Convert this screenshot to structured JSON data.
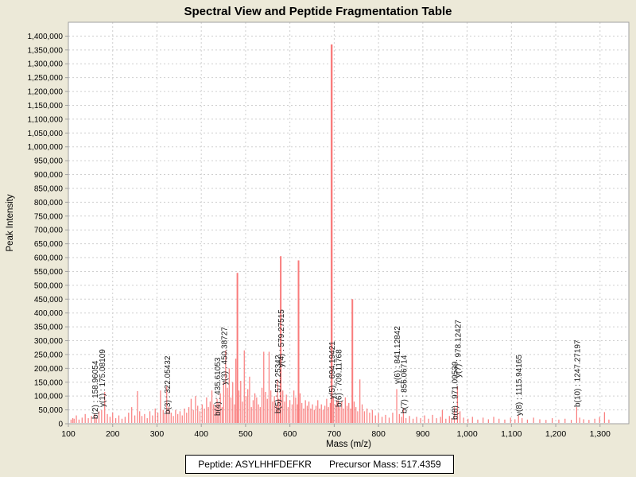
{
  "title": "Spectral View and Peptide Fragmentation Table",
  "footer": {
    "peptide": "Peptide: ASYLHHFDEFKR",
    "precursor_mass": "Precursor Mass: 517.4359"
  },
  "colors": {
    "background": "#ECE9D8",
    "plot_background": "#FFFFFF",
    "peak": "#F97C7C",
    "grid": "#CFCFCF",
    "frame": "#A0A0A0",
    "text": "#000000",
    "annotation_text": "#1A1A1A"
  },
  "chart_data": {
    "type": "bar",
    "title": "Spectral View and Peptide Fragmentation Table",
    "xlabel": "Mass (m/z)",
    "ylabel": "Peak Intensity",
    "xlim": [
      100,
      1365
    ],
    "ylim": [
      0,
      1450000
    ],
    "x_tick_min": 100,
    "x_tick_max": 1300,
    "x_tick_step": 100,
    "y_tick_min": 0,
    "y_tick_max": 1400000,
    "y_tick_step": 50000,
    "grid": true,
    "legend": "none",
    "annotations": [
      {
        "label": "b(2) : 158.96054",
        "mz": 158.96054,
        "bottom": 527
      },
      {
        "label": "y(1) : 175.08109",
        "mz": 175.08109,
        "bottom": 512
      },
      {
        "label": "b(3) : 322.05432",
        "mz": 322.05432,
        "bottom": 521
      },
      {
        "label": "b(4) : 435.61053",
        "mz": 435.61053,
        "bottom": 523
      },
      {
        "label": "y(3) : 450.38727",
        "mz": 450.38727,
        "bottom": 484
      },
      {
        "label": "b(5) : 572.25342",
        "mz": 572.25342,
        "bottom": 520
      },
      {
        "label": "y(4) : 579.27515",
        "mz": 579.27515,
        "bottom": 462
      },
      {
        "label": "y(5) : 694.19421",
        "mz": 694.19421,
        "bottom": 502
      },
      {
        "label": "b(6) : 709.11768",
        "mz": 709.11768,
        "bottom": 512
      },
      {
        "label": "y(6) : 841.12842",
        "mz": 841.12842,
        "bottom": 483
      },
      {
        "label": "b(7) : 856.06714",
        "mz": 856.06714,
        "bottom": 520
      },
      {
        "label": "b(8) : 971.09539",
        "mz": 971.09539,
        "bottom": 528
      },
      {
        "label": "y(7) : 978.12427",
        "mz": 978.12427,
        "bottom": 475
      },
      {
        "label": "y(8) : 1115.94165",
        "mz": 1115.94165,
        "bottom": 523
      },
      {
        "label": "b(10) : 1247.27197",
        "mz": 1247.27197,
        "bottom": 512
      }
    ],
    "peaks": [
      [
        106,
        15000
      ],
      [
        110,
        20000
      ],
      [
        113,
        18000
      ],
      [
        118,
        30000
      ],
      [
        124,
        15000
      ],
      [
        131,
        22000
      ],
      [
        138,
        35000
      ],
      [
        145,
        20000
      ],
      [
        152,
        28000
      ],
      [
        158.96,
        35000
      ],
      [
        163,
        20000
      ],
      [
        169,
        45000
      ],
      [
        175.08,
        50000
      ],
      [
        182,
        115000
      ],
      [
        188,
        35000
      ],
      [
        194,
        25000
      ],
      [
        200,
        40000
      ],
      [
        207,
        20000
      ],
      [
        214,
        30000
      ],
      [
        221,
        18000
      ],
      [
        228,
        25000
      ],
      [
        236,
        40000
      ],
      [
        243,
        60000
      ],
      [
        250,
        30000
      ],
      [
        256,
        118000
      ],
      [
        261,
        45000
      ],
      [
        266,
        28000
      ],
      [
        272,
        35000
      ],
      [
        278,
        20000
      ],
      [
        284,
        45000
      ],
      [
        290,
        30000
      ],
      [
        296,
        55000
      ],
      [
        302,
        40000
      ],
      [
        308,
        120000
      ],
      [
        314,
        50000
      ],
      [
        318,
        35000
      ],
      [
        322.05,
        135000
      ],
      [
        327,
        60000
      ],
      [
        332,
        40000
      ],
      [
        337,
        28000
      ],
      [
        342,
        50000
      ],
      [
        347,
        35000
      ],
      [
        352,
        45000
      ],
      [
        357,
        30000
      ],
      [
        362,
        55000
      ],
      [
        367,
        40000
      ],
      [
        372,
        60000
      ],
      [
        377,
        90000
      ],
      [
        382,
        50000
      ],
      [
        387,
        100000
      ],
      [
        392,
        65000
      ],
      [
        397,
        45000
      ],
      [
        402,
        70000
      ],
      [
        407,
        55000
      ],
      [
        412,
        95000
      ],
      [
        416,
        60000
      ],
      [
        420,
        80000
      ],
      [
        424,
        120000
      ],
      [
        428,
        70000
      ],
      [
        432,
        60000
      ],
      [
        435.61,
        90000
      ],
      [
        439,
        75000
      ],
      [
        443,
        110000
      ],
      [
        447,
        60000
      ],
      [
        450.39,
        150000
      ],
      [
        455,
        265000
      ],
      [
        459,
        130000
      ],
      [
        463,
        200000
      ],
      [
        467,
        95000
      ],
      [
        471,
        150000
      ],
      [
        475,
        70000
      ],
      [
        478,
        235000
      ],
      [
        481.5,
        545000
      ],
      [
        485,
        120000
      ],
      [
        489,
        155000
      ],
      [
        493,
        80000
      ],
      [
        497,
        265000
      ],
      [
        501,
        100000
      ],
      [
        505,
        125000
      ],
      [
        509,
        170000
      ],
      [
        513,
        60000
      ],
      [
        517,
        85000
      ],
      [
        521,
        110000
      ],
      [
        525,
        95000
      ],
      [
        529,
        70000
      ],
      [
        533,
        60000
      ],
      [
        537,
        130000
      ],
      [
        541,
        260000
      ],
      [
        545,
        115000
      ],
      [
        549,
        90000
      ],
      [
        553,
        260000
      ],
      [
        557,
        120000
      ],
      [
        561,
        80000
      ],
      [
        565,
        100000
      ],
      [
        569,
        65000
      ],
      [
        572.25,
        160000
      ],
      [
        575,
        90000
      ],
      [
        579.28,
        605000
      ],
      [
        584,
        120000
      ],
      [
        588,
        80000
      ],
      [
        592,
        105000
      ],
      [
        596,
        60000
      ],
      [
        600,
        85000
      ],
      [
        605,
        70000
      ],
      [
        609,
        120000
      ],
      [
        613,
        95000
      ],
      [
        617,
        70000
      ],
      [
        619.5,
        590000
      ],
      [
        623,
        110000
      ],
      [
        627,
        75000
      ],
      [
        631,
        55000
      ],
      [
        635,
        85000
      ],
      [
        639,
        65000
      ],
      [
        643,
        80000
      ],
      [
        647,
        55000
      ],
      [
        651,
        70000
      ],
      [
        655,
        50000
      ],
      [
        659,
        65000
      ],
      [
        663,
        85000
      ],
      [
        667,
        55000
      ],
      [
        671,
        70000
      ],
      [
        675,
        50000
      ],
      [
        679,
        65000
      ],
      [
        683,
        90000
      ],
      [
        687,
        60000
      ],
      [
        691,
        75000
      ],
      [
        694.19,
        1370000
      ],
      [
        698,
        95000
      ],
      [
        702,
        70000
      ],
      [
        706,
        85000
      ],
      [
        709.12,
        85000
      ],
      [
        713,
        60000
      ],
      [
        717,
        80000
      ],
      [
        721,
        55000
      ],
      [
        725,
        95000
      ],
      [
        729,
        65000
      ],
      [
        733,
        75000
      ],
      [
        737,
        55000
      ],
      [
        741,
        450000
      ],
      [
        745,
        80000
      ],
      [
        749,
        60000
      ],
      [
        753,
        45000
      ],
      [
        758,
        160000
      ],
      [
        763,
        70000
      ],
      [
        768,
        45000
      ],
      [
        774,
        55000
      ],
      [
        780,
        40000
      ],
      [
        786,
        50000
      ],
      [
        793,
        30000
      ],
      [
        800,
        38000
      ],
      [
        808,
        25000
      ],
      [
        816,
        32000
      ],
      [
        824,
        22000
      ],
      [
        832,
        40000
      ],
      [
        841.13,
        125000
      ],
      [
        847,
        35000
      ],
      [
        852,
        25000
      ],
      [
        856.07,
        55000
      ],
      [
        862,
        20000
      ],
      [
        870,
        28000
      ],
      [
        878,
        18000
      ],
      [
        886,
        25000
      ],
      [
        895,
        20000
      ],
      [
        904,
        30000
      ],
      [
        913,
        18000
      ],
      [
        922,
        32000
      ],
      [
        931,
        20000
      ],
      [
        940,
        25000
      ],
      [
        944,
        50000
      ],
      [
        952,
        18000
      ],
      [
        960,
        28000
      ],
      [
        965,
        20000
      ],
      [
        971.1,
        60000
      ],
      [
        978.12,
        135000
      ],
      [
        984,
        45000
      ],
      [
        992,
        22000
      ],
      [
        1002,
        18000
      ],
      [
        1012,
        25000
      ],
      [
        1024,
        15000
      ],
      [
        1036,
        22000
      ],
      [
        1048,
        16000
      ],
      [
        1060,
        25000
      ],
      [
        1072,
        18000
      ],
      [
        1085,
        15000
      ],
      [
        1098,
        22000
      ],
      [
        1108,
        16000
      ],
      [
        1115.94,
        30000
      ],
      [
        1124,
        20000
      ],
      [
        1136,
        15000
      ],
      [
        1150,
        22000
      ],
      [
        1164,
        16000
      ],
      [
        1178,
        14000
      ],
      [
        1192,
        20000
      ],
      [
        1207,
        15000
      ],
      [
        1221,
        18000
      ],
      [
        1235,
        14000
      ],
      [
        1247.27,
        60000
      ],
      [
        1254,
        22000
      ],
      [
        1263,
        16000
      ],
      [
        1275,
        14000
      ],
      [
        1288,
        18000
      ],
      [
        1299,
        24000
      ],
      [
        1310,
        42000
      ],
      [
        1320,
        15000
      ]
    ]
  }
}
